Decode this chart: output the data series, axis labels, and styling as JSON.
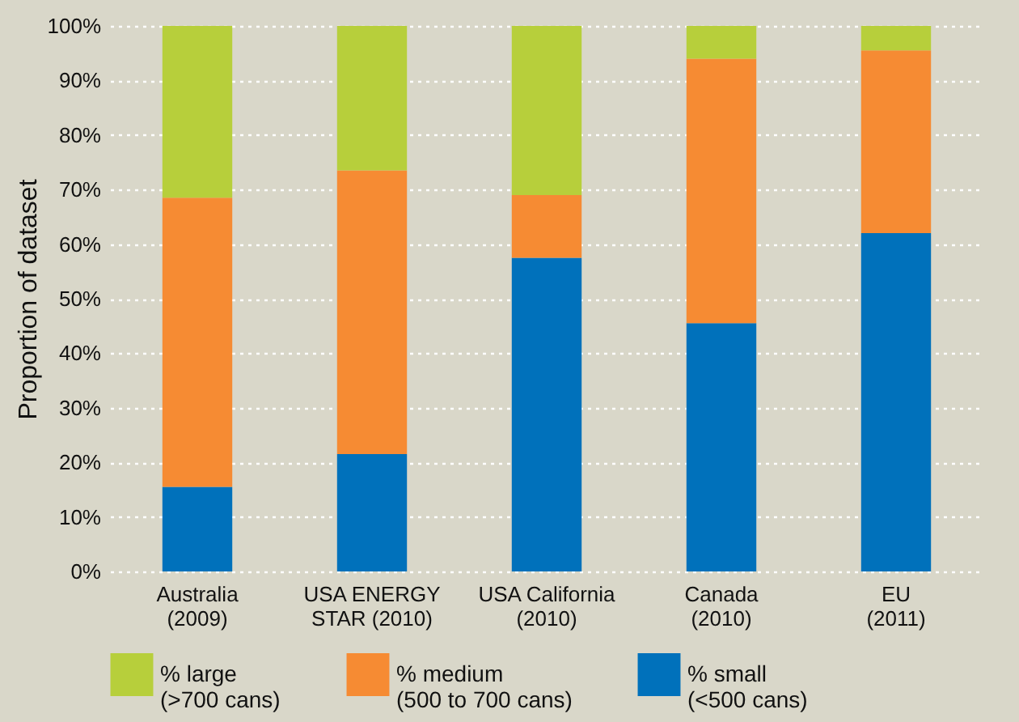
{
  "chart_data": {
    "type": "bar",
    "stacked": true,
    "ylabel": "Proportion of dataset",
    "categories": [
      "Australia\n(2009)",
      "USA ENERGY\nSTAR (2010)",
      "USA California\n(2010)",
      "Canada\n(2010)",
      "EU\n(2011)"
    ],
    "series": [
      {
        "name": "% small\n(<500 cans)",
        "color": "#0071bb",
        "values": [
          15.5,
          21.5,
          57.5,
          45.5,
          62
        ]
      },
      {
        "name": "% medium\n(500 to 700 cans)",
        "color": "#f68b33",
        "values": [
          53,
          52,
          11.5,
          48.5,
          33.5
        ]
      },
      {
        "name": "% large\n(>700 cans)",
        "color": "#b7cf3b",
        "values": [
          31.5,
          26.5,
          31,
          6,
          4.5
        ]
      }
    ],
    "ylim": [
      0,
      100
    ],
    "yticks": [
      {
        "value": 0,
        "label": "0%"
      },
      {
        "value": 10,
        "label": "10%"
      },
      {
        "value": 20,
        "label": "20%"
      },
      {
        "value": 30,
        "label": "30%"
      },
      {
        "value": 40,
        "label": "40%"
      },
      {
        "value": 50,
        "label": "50%"
      },
      {
        "value": 60,
        "label": "60%"
      },
      {
        "value": 70,
        "label": "70%"
      },
      {
        "value": 80,
        "label": "80%"
      },
      {
        "value": 90,
        "label": "90%"
      },
      {
        "value": 100,
        "label": "100%"
      }
    ],
    "grid": "y",
    "legend": "bottom"
  }
}
